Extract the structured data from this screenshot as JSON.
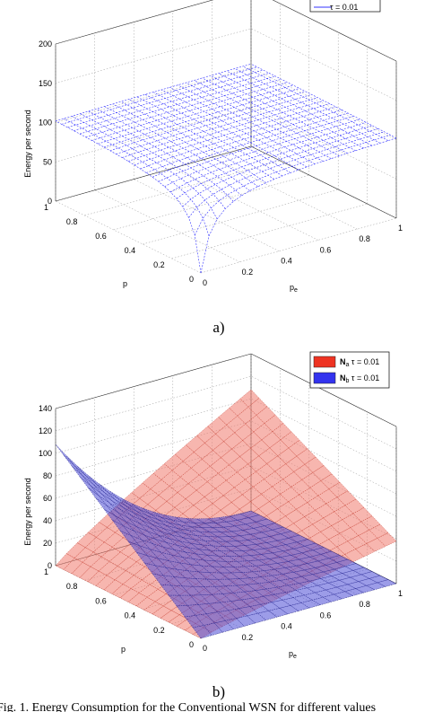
{
  "chart_data": [
    {
      "type": "surface",
      "subplot_label": "a)",
      "zlabel": "Energy per second",
      "xlabel": "p",
      "ylabel": "p_e",
      "xlim": [
        0,
        1
      ],
      "ylim": [
        0,
        1
      ],
      "zlim": [
        0,
        200
      ],
      "z_ticks": [
        "0",
        "50",
        "100",
        "150",
        "200"
      ],
      "p_ticks": [
        "1",
        "0.8",
        "0.6",
        "0.4",
        "0.2",
        "0"
      ],
      "pe_ticks": [
        "0",
        "0.2",
        "0.4",
        "0.6",
        "0.8",
        "1"
      ],
      "legend": [
        {
          "name": "τ = 0.01",
          "color": "#3333ff"
        }
      ],
      "series": [
        {
          "name": "τ = 0.01",
          "color": "#3333ff",
          "style": "mesh",
          "corner_values": {
            "p0_pe0": 0,
            "p1_pe0": 108,
            "p0_pe1": 108,
            "p1_pe1": 108
          },
          "mid_value": 108
        }
      ]
    },
    {
      "type": "surface",
      "subplot_label": "b)",
      "zlabel": "Energy per second",
      "xlabel": "p",
      "ylabel": "p_e",
      "xlim": [
        0,
        1
      ],
      "ylim": [
        0,
        1
      ],
      "zlim": [
        0,
        140
      ],
      "z_ticks": [
        "0",
        "20",
        "40",
        "60",
        "80",
        "100",
        "120",
        "140"
      ],
      "p_ticks": [
        "1",
        "0.8",
        "0.6",
        "0.4",
        "0.2",
        "0"
      ],
      "pe_ticks": [
        "0",
        "0.2",
        "0.4",
        "0.6",
        "0.8",
        "1"
      ],
      "legend": [
        {
          "sym": "N",
          "sub": "a",
          "rest": " τ = 0.01",
          "color": "#ee3322"
        },
        {
          "sym": "N",
          "sub": "b",
          "rest": " τ = 0.01",
          "color": "#3333ee"
        }
      ],
      "series": [
        {
          "name": "Na τ = 0.01",
          "color": "#ee3322",
          "corner_values": {
            "p0_pe0": 0,
            "p1_pe0": 0,
            "p0_pe1": 0,
            "p1_pe1": 108
          }
        },
        {
          "name": "Nb τ = 0.01",
          "color": "#3333ee",
          "corner_values": {
            "p0_pe0": 108,
            "p1_pe0": 0,
            "p0_pe1": 0,
            "p1_pe1": 0
          }
        }
      ]
    }
  ],
  "caption": "Fig. 1.   Energy Consumption for the Conventional WSN for different values"
}
